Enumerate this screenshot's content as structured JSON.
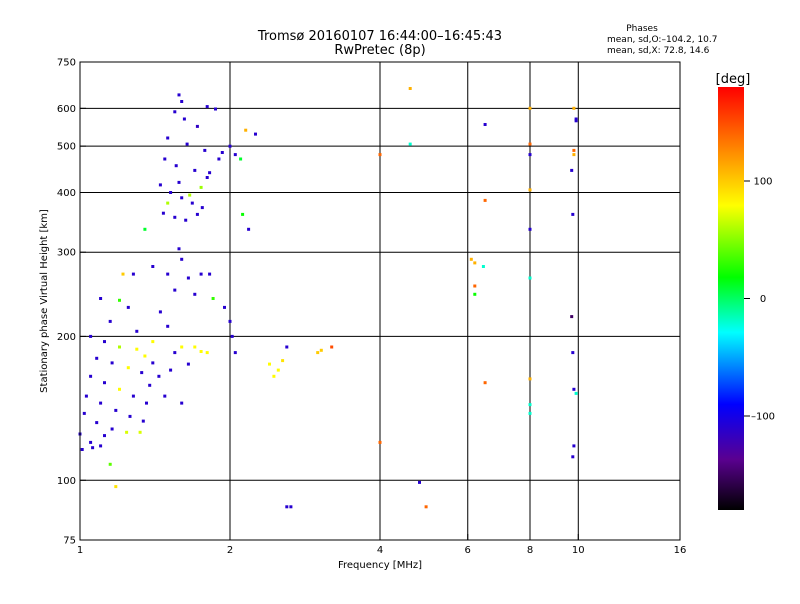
{
  "chart_data": {
    "type": "scatter",
    "title": "Tromsø 20160107 16:44:00–16:45:43",
    "subtitle": "RwPretec (8p)",
    "xlabel": "Frequency [MHz]",
    "ylabel": "Stationary phase Virtual Height [km]",
    "x_scale": "log",
    "y_scale": "log",
    "xlim": [
      1,
      16
    ],
    "ylim": [
      75,
      750
    ],
    "x_ticks": [
      1,
      2,
      4,
      6,
      8,
      10,
      16
    ],
    "x_tick_labels": [
      "1",
      "2",
      "4",
      "6",
      "8",
      "10",
      "16"
    ],
    "x_gridlines": [
      2,
      4,
      6,
      8,
      10
    ],
    "y_ticks": [
      75,
      100,
      200,
      300,
      400,
      500,
      600,
      750
    ],
    "y_tick_labels": [
      "75",
      "100",
      "200",
      "300",
      "400",
      "500",
      "600",
      "750"
    ],
    "y_gridlines": [
      100,
      200,
      300,
      400,
      500,
      600
    ],
    "grid": true,
    "stats": {
      "header": "Phases",
      "line_o": "mean, sd,O:–104.2, 10.7",
      "line_x": "mean, sd,X:  72.8, 14.6"
    },
    "colorbar": {
      "label": "[deg]",
      "range": [
        -180,
        180
      ],
      "ticks": [
        100,
        0,
        -100
      ],
      "tick_labels": [
        "100",
        "0",
        "–100"
      ]
    },
    "series": [
      {
        "points": [
          [
            1.58,
            640,
            -110
          ],
          [
            1.6,
            620,
            -110
          ],
          [
            1.8,
            605,
            -110
          ],
          [
            1.87,
            598,
            -110
          ],
          [
            1.55,
            590,
            -110
          ],
          [
            1.62,
            570,
            -110
          ],
          [
            1.72,
            550,
            -115
          ],
          [
            1.5,
            520,
            -110
          ],
          [
            1.64,
            505,
            -110
          ],
          [
            1.78,
            490,
            -110
          ],
          [
            1.48,
            470,
            -110
          ],
          [
            1.56,
            455,
            -110
          ],
          [
            1.7,
            445,
            -110
          ],
          [
            1.8,
            430,
            -110
          ],
          [
            1.45,
            415,
            -110
          ],
          [
            1.52,
            400,
            -110
          ],
          [
            1.6,
            390,
            -110
          ],
          [
            1.68,
            380,
            -110
          ],
          [
            1.76,
            372,
            -110
          ],
          [
            1.47,
            362,
            -110
          ],
          [
            1.55,
            355,
            -110
          ],
          [
            1.63,
            350,
            -110
          ],
          [
            1.72,
            360,
            -110
          ],
          [
            1.5,
            380,
            60
          ],
          [
            1.66,
            395,
            60
          ],
          [
            1.75,
            410,
            55
          ],
          [
            1.58,
            420,
            -110
          ],
          [
            1.82,
            440,
            -110
          ],
          [
            1.9,
            470,
            -110
          ],
          [
            2.0,
            500,
            -110
          ],
          [
            2.05,
            480,
            -110
          ],
          [
            1.93,
            485,
            -110
          ],
          [
            2.1,
            470,
            10
          ],
          [
            2.15,
            540,
            110
          ],
          [
            2.25,
            530,
            -110
          ],
          [
            2.12,
            360,
            20
          ],
          [
            2.18,
            335,
            -110
          ],
          [
            1.35,
            335,
            10
          ],
          [
            1.58,
            305,
            -110
          ],
          [
            1.6,
            290,
            -110
          ],
          [
            1.4,
            280,
            -110
          ],
          [
            1.5,
            270,
            -110
          ],
          [
            1.65,
            265,
            -110
          ],
          [
            1.75,
            270,
            -110
          ],
          [
            1.82,
            270,
            -110
          ],
          [
            1.55,
            250,
            -110
          ],
          [
            1.7,
            245,
            -110
          ],
          [
            1.85,
            240,
            30
          ],
          [
            1.95,
            230,
            -110
          ],
          [
            2.0,
            215,
            -110
          ],
          [
            2.02,
            200,
            -110
          ],
          [
            2.05,
            185,
            -110
          ],
          [
            1.45,
            225,
            -110
          ],
          [
            1.5,
            210,
            -110
          ],
          [
            1.4,
            195,
            80
          ],
          [
            1.55,
            185,
            -110
          ],
          [
            1.6,
            190,
            80
          ],
          [
            1.7,
            190,
            80
          ],
          [
            1.75,
            186,
            80
          ],
          [
            1.8,
            185,
            80
          ],
          [
            1.65,
            175,
            -110
          ],
          [
            1.52,
            170,
            -110
          ],
          [
            1.44,
            165,
            -110
          ],
          [
            1.38,
            158,
            -110
          ],
          [
            1.48,
            150,
            -110
          ],
          [
            1.6,
            145,
            -110
          ],
          [
            1.1,
            240,
            -110
          ],
          [
            1.2,
            238,
            30
          ],
          [
            1.25,
            230,
            -110
          ],
          [
            1.15,
            215,
            -110
          ],
          [
            1.3,
            205,
            -110
          ],
          [
            1.05,
            200,
            -110
          ],
          [
            1.12,
            195,
            -110
          ],
          [
            1.2,
            190,
            60
          ],
          [
            1.3,
            188,
            80
          ],
          [
            1.35,
            182,
            80
          ],
          [
            1.4,
            176,
            -110
          ],
          [
            1.08,
            180,
            -110
          ],
          [
            1.16,
            176,
            -110
          ],
          [
            1.25,
            172,
            80
          ],
          [
            1.33,
            168,
            -110
          ],
          [
            1.05,
            165,
            -110
          ],
          [
            1.12,
            160,
            -110
          ],
          [
            1.2,
            155,
            80
          ],
          [
            1.28,
            150,
            -110
          ],
          [
            1.36,
            145,
            -110
          ],
          [
            1.03,
            150,
            -110
          ],
          [
            1.1,
            145,
            -110
          ],
          [
            1.18,
            140,
            -110
          ],
          [
            1.26,
            136,
            -110
          ],
          [
            1.34,
            133,
            -110
          ],
          [
            1.02,
            138,
            -110
          ],
          [
            1.08,
            132,
            -110
          ],
          [
            1.16,
            128,
            -110
          ],
          [
            1.24,
            126,
            70
          ],
          [
            1.32,
            126,
            70
          ],
          [
            1.0,
            125,
            -110
          ],
          [
            1.05,
            120,
            -110
          ],
          [
            1.1,
            118,
            -110
          ],
          [
            1.01,
            116,
            -110
          ],
          [
            1.06,
            117,
            -110
          ],
          [
            1.12,
            124,
            -110
          ],
          [
            1.22,
            270,
            100
          ],
          [
            1.28,
            270,
            -110
          ],
          [
            1.15,
            108,
            40
          ],
          [
            1.18,
            97,
            90
          ],
          [
            2.4,
            175,
            80
          ],
          [
            2.45,
            165,
            80
          ],
          [
            2.5,
            170,
            80
          ],
          [
            2.55,
            178,
            90
          ],
          [
            2.6,
            190,
            -110
          ],
          [
            2.6,
            88,
            -110
          ],
          [
            2.65,
            88,
            -110
          ],
          [
            3.0,
            185,
            100
          ],
          [
            3.05,
            187,
            100
          ],
          [
            3.2,
            190,
            150
          ],
          [
            4.0,
            120,
            140
          ],
          [
            4.0,
            480,
            140
          ],
          [
            4.6,
            660,
            110
          ],
          [
            4.6,
            505,
            -20
          ],
          [
            4.8,
            99,
            -110
          ],
          [
            4.95,
            88,
            140
          ],
          [
            6.1,
            290,
            110
          ],
          [
            6.2,
            285,
            110
          ],
          [
            6.2,
            255,
            140
          ],
          [
            6.2,
            245,
            20
          ],
          [
            6.45,
            280,
            -20
          ],
          [
            6.5,
            555,
            -110
          ],
          [
            6.5,
            385,
            140
          ],
          [
            6.5,
            160,
            140
          ],
          [
            8.0,
            600,
            110
          ],
          [
            8.0,
            505,
            140
          ],
          [
            8.0,
            480,
            -110
          ],
          [
            8.0,
            405,
            110
          ],
          [
            8.0,
            335,
            -110
          ],
          [
            8.0,
            265,
            -20
          ],
          [
            8.0,
            163,
            110
          ],
          [
            8.0,
            144,
            -20
          ],
          [
            8.0,
            138,
            -20
          ],
          [
            9.8,
            600,
            110
          ],
          [
            9.9,
            570,
            -110
          ],
          [
            9.9,
            565,
            -110
          ],
          [
            9.8,
            490,
            140
          ],
          [
            9.8,
            480,
            110
          ],
          [
            9.7,
            445,
            -110
          ],
          [
            9.75,
            360,
            -110
          ],
          [
            9.7,
            220,
            -150
          ],
          [
            9.75,
            185,
            -110
          ],
          [
            9.8,
            155,
            -110
          ],
          [
            9.9,
            152,
            -20
          ],
          [
            9.8,
            118,
            -110
          ],
          [
            9.75,
            112,
            -110
          ]
        ]
      }
    ]
  }
}
